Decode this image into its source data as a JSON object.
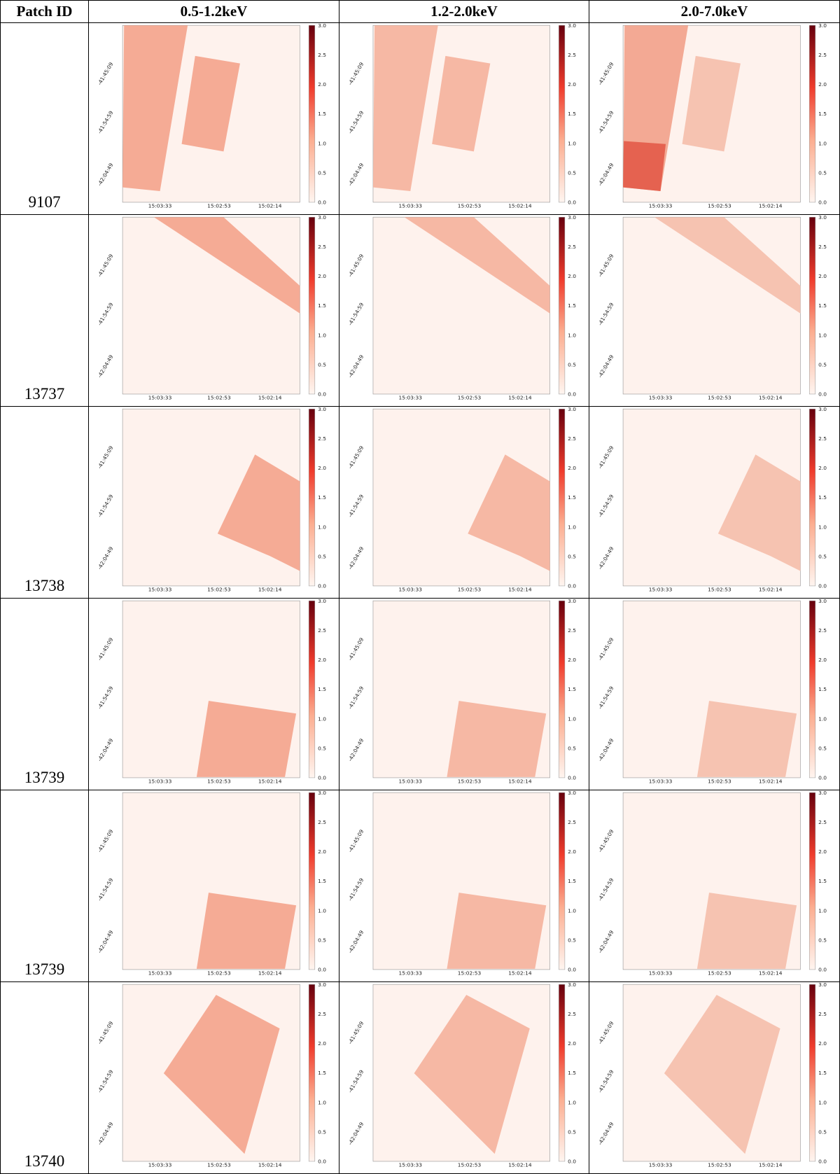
{
  "header": {
    "patch_id": "Patch ID",
    "bands": [
      "0.5-1.2keV",
      "1.2-2.0keV",
      "2.0-7.0keV"
    ]
  },
  "rows": [
    {
      "patch_id": 9107
    },
    {
      "patch_id": 13737
    },
    {
      "patch_id": 13738
    },
    {
      "patch_id": 13739
    },
    {
      "patch_id": 13739
    },
    {
      "patch_id": 13740
    }
  ],
  "axes": {
    "y_ticks": [
      "-41:45:09",
      "-41:54:59",
      "-42:04:49"
    ],
    "x_ticks": [
      "15:03:33",
      "15:02:53",
      "15:02:14"
    ],
    "colorbar_ticks": [
      "0.0",
      "0.5",
      "1.0",
      "1.5",
      "2.0",
      "2.5",
      "3.0"
    ]
  }
}
